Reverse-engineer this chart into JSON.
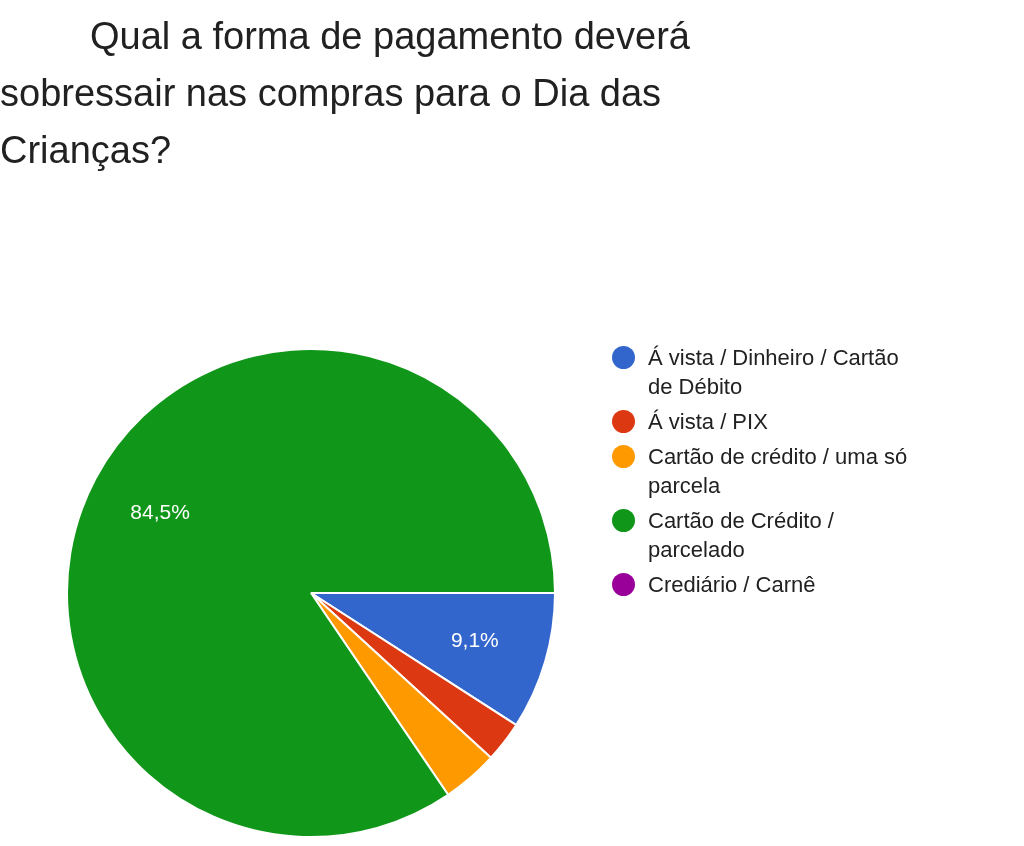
{
  "chart_data": {
    "type": "pie",
    "title": "Qual a forma de pagamento deverá sobressair nas compras para o  Dia das Crianças?",
    "categories": [
      "Á vista / Dinheiro / Cartão de Débito",
      "Á vista / PIX",
      "Cartão de crédito / uma só parcela",
      "Cartão de Crédito / parcelado",
      "Crediário / Carnê"
    ],
    "values": [
      9.1,
      2.7,
      3.7,
      84.5,
      0
    ],
    "colors": [
      "#3366cc",
      "#dc3912",
      "#ff9900",
      "#109618",
      "#990099"
    ],
    "value_labels": [
      "9,1%",
      null,
      null,
      "84,5%",
      null
    ],
    "legend": "right"
  }
}
